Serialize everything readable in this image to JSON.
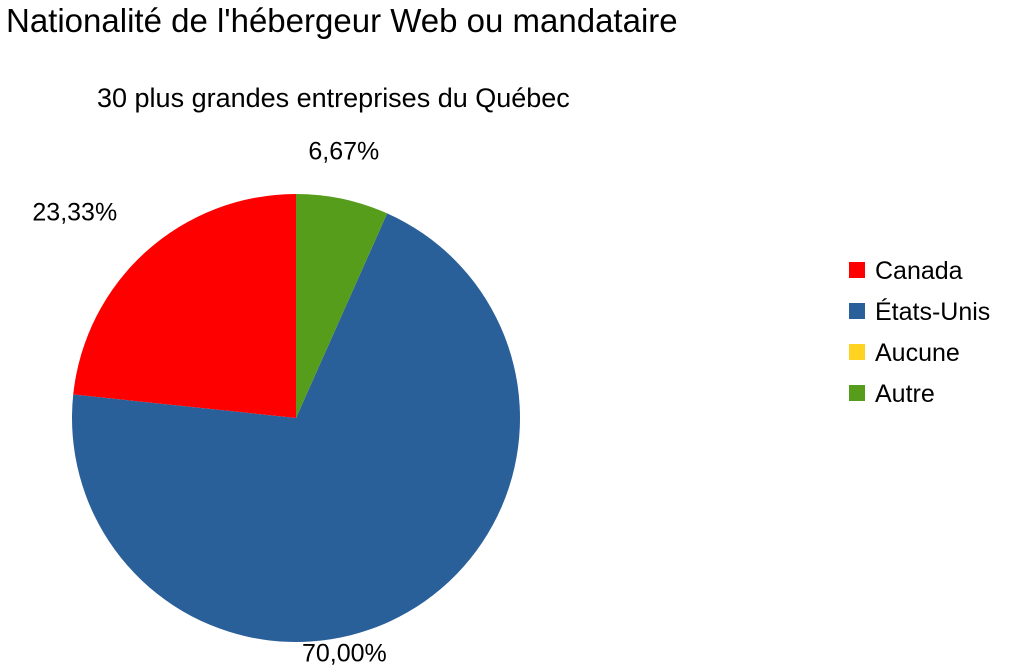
{
  "chart_data": {
    "type": "pie",
    "title": "Nationalité de l'hébergeur Web ou mandataire",
    "subtitle": "30 plus grandes entreprises du Québec",
    "categories": [
      "Canada",
      "États-Unis",
      "Aucune",
      "Autre"
    ],
    "values": [
      23.33,
      70.0,
      0,
      6.67
    ],
    "labels": [
      "23,33%",
      "70,00%",
      "",
      "6,67%"
    ],
    "colors": [
      "#ff0000",
      "#2a6099",
      "#ffd320",
      "#579d1c"
    ],
    "legend_position": "right",
    "start": "top",
    "direction": "counterclockwise"
  }
}
